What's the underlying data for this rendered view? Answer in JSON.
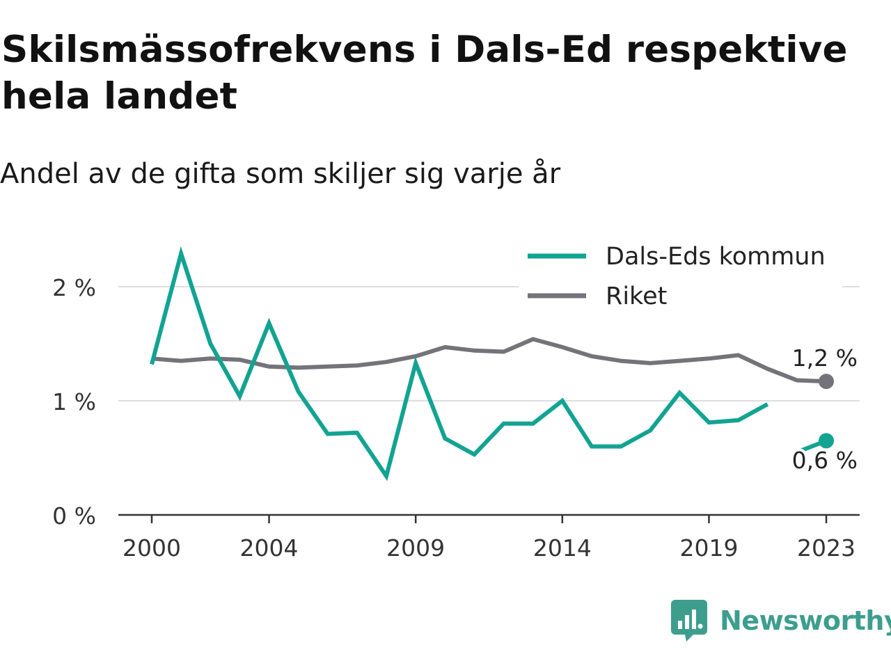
{
  "title": "Skilsmässofrekvens i Dals-Ed respektive hela landet",
  "subtitle": "Andel av de gifta som skiljer sig varje år",
  "brand": {
    "name": "Newsworthy",
    "icon": "newsworthy-logo-icon",
    "color": "#3d9e8e"
  },
  "chart_data": {
    "type": "line",
    "x": [
      2000,
      2001,
      2002,
      2003,
      2004,
      2005,
      2006,
      2007,
      2008,
      2009,
      2010,
      2011,
      2012,
      2013,
      2014,
      2015,
      2016,
      2017,
      2018,
      2019,
      2020,
      2021,
      2022,
      2023
    ],
    "x_ticks": [
      2000,
      2004,
      2009,
      2014,
      2019,
      2023
    ],
    "y_ticks": [
      0,
      1,
      2
    ],
    "y_tick_labels": [
      "0 %",
      "1 %",
      "2 %"
    ],
    "ylim": [
      0,
      2.5
    ],
    "grid": true,
    "legend_position": "top-right",
    "series": [
      {
        "name": "Dals-Eds kommun",
        "color": "#12a392",
        "values": [
          1.32,
          2.29,
          1.5,
          1.04,
          1.68,
          1.08,
          0.71,
          0.72,
          0.34,
          1.33,
          0.67,
          0.53,
          0.8,
          0.8,
          1.0,
          0.6,
          0.6,
          0.74,
          1.07,
          0.81,
          0.83,
          0.97,
          0.55,
          0.65
        ],
        "gap_before_index": 22,
        "end_label": "0,6 %"
      },
      {
        "name": "Riket",
        "color": "#74737a",
        "values": [
          1.37,
          1.35,
          1.37,
          1.36,
          1.3,
          1.29,
          1.3,
          1.31,
          1.34,
          1.39,
          1.47,
          1.44,
          1.43,
          1.54,
          1.47,
          1.39,
          1.35,
          1.33,
          1.35,
          1.37,
          1.4,
          1.28,
          1.18,
          1.17
        ],
        "end_label": "1,2 %"
      }
    ]
  }
}
